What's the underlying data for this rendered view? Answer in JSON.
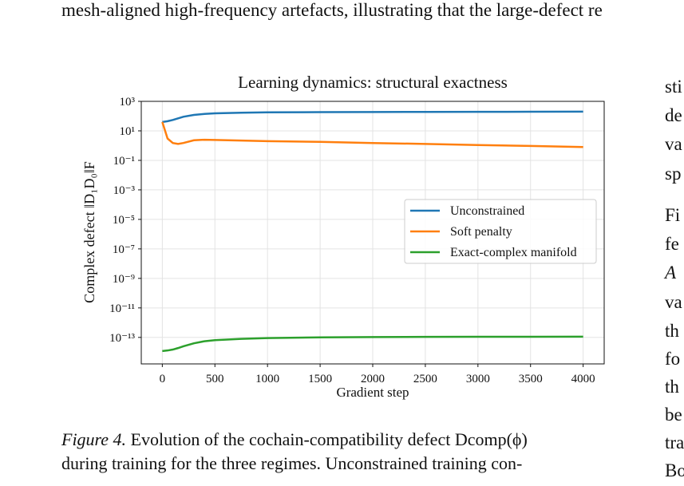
{
  "top_line": "mesh-aligned high-frequency artefacts, illustrating that the large-defect re",
  "chart_data": {
    "type": "line",
    "title": "Learning dynamics: structural exactness",
    "x_label": "Gradient step",
    "y_label": "Complex defect ‖D₁D₀‖F",
    "x": [
      0,
      50,
      100,
      150,
      200,
      300,
      400,
      500,
      750,
      1000,
      1500,
      2000,
      2500,
      3000,
      3500,
      4000
    ],
    "series": [
      {
        "name": "Unconstrained",
        "color": "#1f77b4",
        "values": [
          40,
          45,
          55,
          70,
          90,
          120,
          140,
          155,
          170,
          180,
          185,
          190,
          192,
          195,
          197,
          200
        ]
      },
      {
        "name": "Soft penalty",
        "color": "#ff7f0e",
        "values": [
          40,
          3,
          1.5,
          1.3,
          1.5,
          2.3,
          2.5,
          2.4,
          2.2,
          2.0,
          1.8,
          1.5,
          1.3,
          1.1,
          0.95,
          0.8
        ]
      },
      {
        "name": "Exact-complex manifold",
        "color": "#2ca02c",
        "values": [
          1.2e-14,
          1.3e-14,
          1.5e-14,
          1.9e-14,
          2.5e-14,
          4e-14,
          5.5e-14,
          6.5e-14,
          8e-14,
          9e-14,
          1e-13,
          1.05e-13,
          1.08e-13,
          1.1e-13,
          1.1e-13,
          1.12e-13
        ]
      }
    ],
    "xlim": [
      -200,
      4200
    ],
    "xticks": [
      0,
      500,
      1000,
      1500,
      2000,
      2500,
      3000,
      3500,
      4000
    ],
    "ylim": [
      1.6e-15,
      1000
    ],
    "log_y": true,
    "yticks": [
      {
        "value": 1000,
        "label": "10³"
      },
      {
        "value": 10,
        "label": "10¹"
      },
      {
        "value": 0.1,
        "label": "10⁻¹"
      },
      {
        "value": 0.001,
        "label": "10⁻³"
      },
      {
        "value": 1e-05,
        "label": "10⁻⁵"
      },
      {
        "value": 1e-07,
        "label": "10⁻⁷"
      },
      {
        "value": 1e-09,
        "label": "10⁻⁹"
      },
      {
        "value": 1e-11,
        "label": "10⁻¹¹"
      },
      {
        "value": 1e-13,
        "label": "10⁻¹³"
      }
    ],
    "grid": true,
    "legend": "right"
  },
  "caption": {
    "label": "Figure 4.",
    "lines": [
      "Evolution of the cochain-compatibility defect Dcomp(ϕ)",
      "during training for the three regimes. Unconstrained training con-"
    ]
  },
  "right_column": [
    "sti",
    "de",
    "va",
    "sp",
    "Fi",
    "fe",
    "A",
    "va",
    "th",
    "fo",
    "th",
    "be",
    "tra",
    "Bo"
  ]
}
